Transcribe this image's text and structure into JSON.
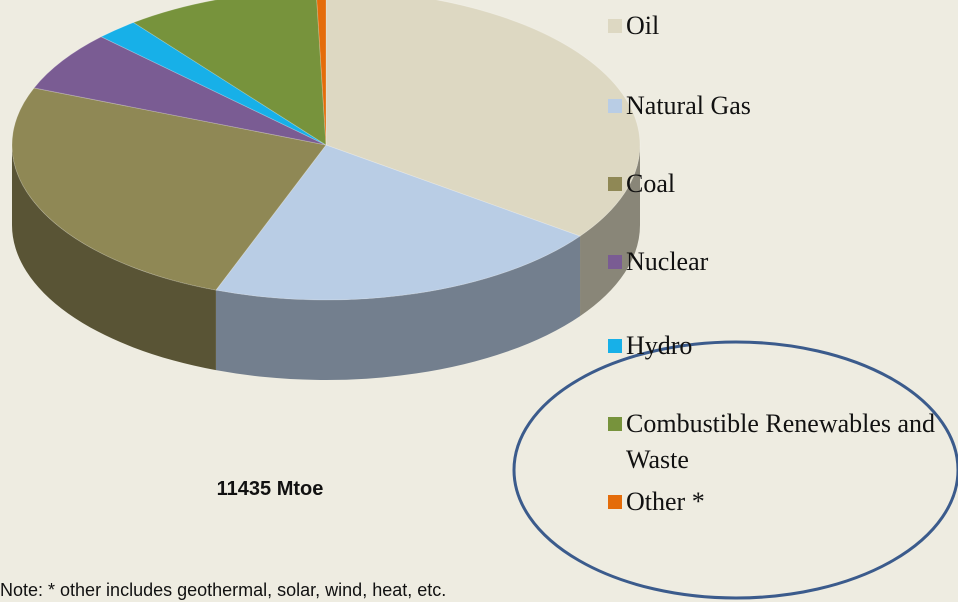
{
  "chart_data": {
    "type": "pie",
    "categories": [
      "Oil",
      "Natural Gas",
      "Coal",
      "Nuclear",
      "Hydro",
      "Combustible Renewables and Waste",
      "Other *"
    ],
    "values": [
      35,
      20.7,
      25.3,
      6.3,
      2.2,
      10,
      0.5
    ],
    "colors": [
      "#ddd8c2",
      "#b9cde5",
      "#8f8855",
      "#7a5c93",
      "#17b0e8",
      "#77933c",
      "#e46c0a"
    ],
    "annotation": "11435 Mtoe",
    "note": "Note:  * other includes geothermal, solar, wind, heat, etc.",
    "legend": "right"
  }
}
